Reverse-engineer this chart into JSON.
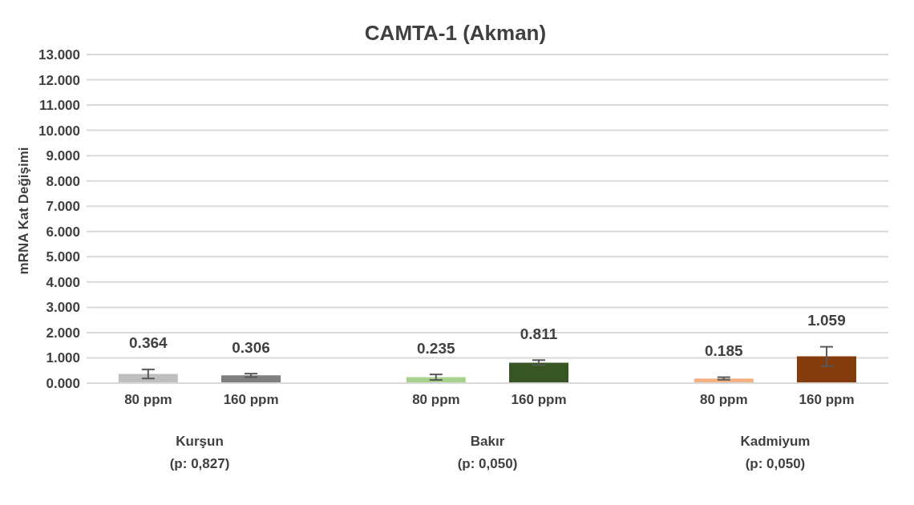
{
  "chart_data": {
    "type": "bar",
    "title": "CAMTA-1 (Akman)",
    "ylabel": "mRNA Kat Değişimi",
    "categories": [
      "80 ppm",
      "160 ppm",
      "80 ppm",
      "160 ppm",
      "80 ppm",
      "160 ppm"
    ],
    "values": [
      0.364,
      0.306,
      0.235,
      0.811,
      0.185,
      1.059
    ],
    "errors": [
      0.18,
      0.07,
      0.11,
      0.1,
      0.05,
      0.38
    ],
    "colors": [
      "#bfbfbf",
      "#7f7f7f",
      "#a9d18e",
      "#375623",
      "#f4b183",
      "#843c0c"
    ],
    "data_labels": true,
    "annotations": [
      "Kurşun\n(p: 0,827)",
      "Bakır\n(p: 0,050)",
      "Kadmiyum\n(p: 0,050)"
    ],
    "ylim": [
      0,
      13
    ],
    "yticks": [
      {
        "value": 0,
        "label": "0.000"
      },
      {
        "value": 1,
        "label": "1.000"
      },
      {
        "value": 2,
        "label": "2.000"
      },
      {
        "value": 3,
        "label": "3.000"
      },
      {
        "value": 4,
        "label": "4.000"
      },
      {
        "value": 5,
        "label": "5.000"
      },
      {
        "value": 6,
        "label": "6.000"
      },
      {
        "value": 7,
        "label": "7.000"
      },
      {
        "value": 8,
        "label": "8.000"
      },
      {
        "value": 9,
        "label": "9.000"
      },
      {
        "value": 10,
        "label": "10.000"
      },
      {
        "value": 11,
        "label": "11.000"
      },
      {
        "value": 12,
        "label": "12.000"
      },
      {
        "value": 13,
        "label": "13.000"
      }
    ],
    "grid": "y"
  }
}
